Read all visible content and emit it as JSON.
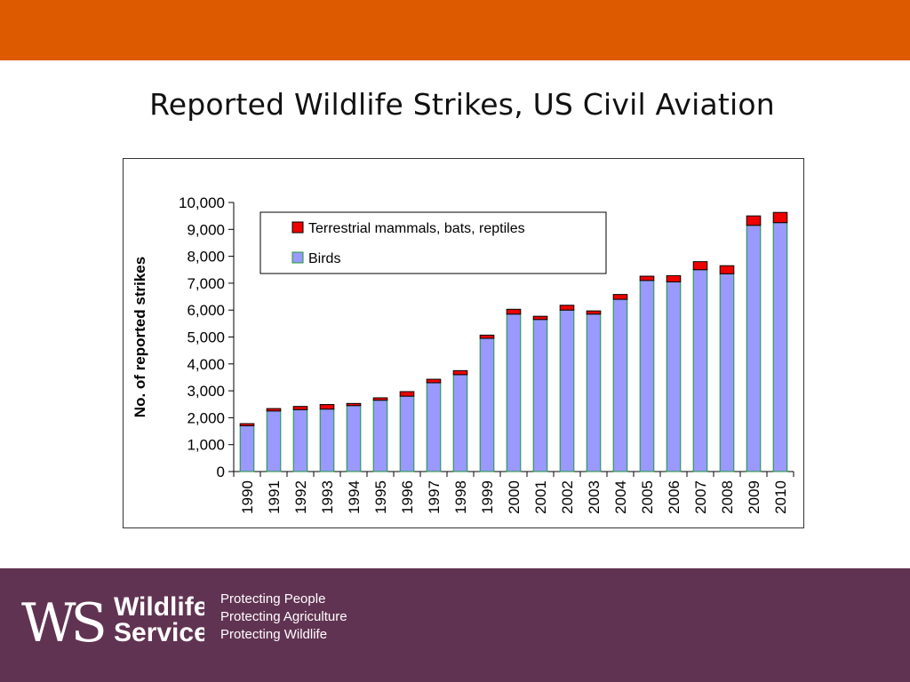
{
  "colors": {
    "top_band": "#dd5a00",
    "footer": "#613352",
    "birds": "#9999ff",
    "birds_edge": "#1a9933",
    "mammals": "#ee0000"
  },
  "slide": {
    "title": "Reported Wildlife Strikes, US Civil Aviation"
  },
  "footer": {
    "brand_line1": "Wildlife",
    "brand_line2": "Services",
    "taglines": [
      "Protecting People",
      "Protecting Agriculture",
      "Protecting Wildlife"
    ]
  },
  "chart_data": {
    "type": "bar",
    "stacked": true,
    "title": "",
    "xlabel": "",
    "ylabel": "No. of reported strikes",
    "ylim": [
      0,
      10000
    ],
    "yticks": [
      "0",
      "1,000",
      "2,000",
      "3,000",
      "4,000",
      "5,000",
      "6,000",
      "7,000",
      "8,000",
      "9,000",
      "10,000"
    ],
    "categories": [
      "1990",
      "1991",
      "1992",
      "1993",
      "1994",
      "1995",
      "1996",
      "1997",
      "1998",
      "1999",
      "2000",
      "2001",
      "2002",
      "2003",
      "2004",
      "2005",
      "2006",
      "2007",
      "2008",
      "2009",
      "2010"
    ],
    "series": [
      {
        "name": "Birds",
        "color": "#9999ff",
        "values": [
          1700,
          2250,
          2300,
          2320,
          2450,
          2650,
          2800,
          3300,
          3600,
          4950,
          5850,
          5650,
          6000,
          5850,
          6400,
          7100,
          7050,
          7500,
          7350,
          9150,
          9250
        ]
      },
      {
        "name": "Terrestrial mammals, bats, reptiles",
        "color": "#ee0000",
        "values": [
          80,
          90,
          120,
          170,
          80,
          90,
          170,
          130,
          150,
          120,
          180,
          120,
          180,
          120,
          180,
          160,
          230,
          300,
          300,
          350,
          380
        ]
      }
    ],
    "legend": {
      "position": "top-left",
      "order": [
        "Terrestrial mammals, bats, reptiles",
        "Birds"
      ]
    },
    "grid": false
  }
}
